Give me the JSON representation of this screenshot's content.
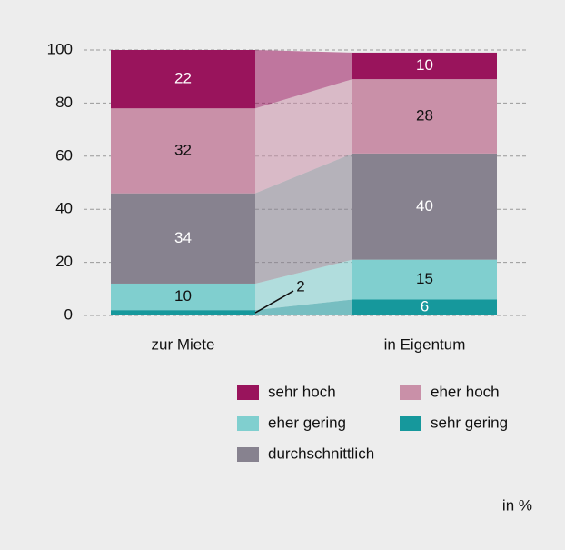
{
  "chart_data": {
    "type": "stacked_bar",
    "categories": [
      "zur Miete",
      "in Eigentum"
    ],
    "series": [
      {
        "name": "sehr gering",
        "color": "#16989c",
        "values": [
          2,
          6
        ]
      },
      {
        "name": "eher gering",
        "color": "#80cfcf",
        "values": [
          10,
          15
        ]
      },
      {
        "name": "durchschnittlich",
        "color": "#87828f",
        "values": [
          34,
          40
        ]
      },
      {
        "name": "eher hoch",
        "color": "#c990a8",
        "values": [
          32,
          28
        ]
      },
      {
        "name": "sehr hoch",
        "color": "#99145c",
        "values": [
          22,
          10
        ]
      }
    ],
    "ylim": [
      0,
      100
    ],
    "yticks": [
      0,
      20,
      40,
      60,
      80,
      100
    ],
    "grid": true,
    "unit": "in %"
  }
}
